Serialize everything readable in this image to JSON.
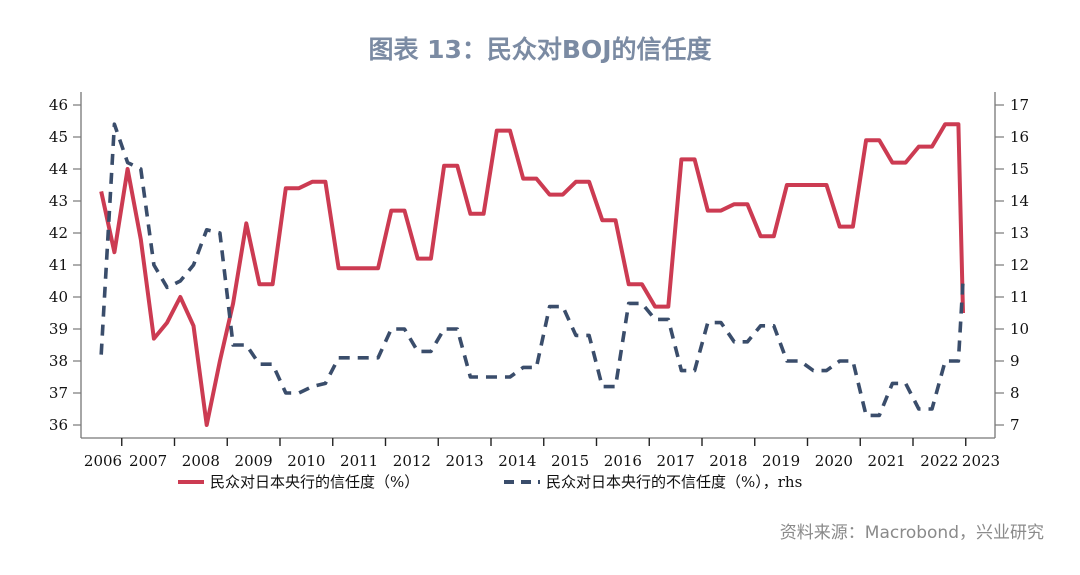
{
  "title": "图表 13：民众对BOJ的信任度",
  "source": "资料来源：Macrobond，兴业研究",
  "colors": {
    "trust": "#cc3b52",
    "distrust": "#3a4d6b",
    "title": "#7b8ba3",
    "axis": "#777777"
  },
  "chart_data": {
    "type": "line",
    "title": "图表 13：民众对BOJ的信任度",
    "xlabel": "",
    "ylabel_left": "",
    "ylabel_right": "",
    "x_ticks": [
      "2006",
      "2007",
      "2008",
      "2009",
      "2010",
      "2011",
      "2012",
      "2013",
      "2014",
      "2015",
      "2016",
      "2017",
      "2018",
      "2019",
      "2020",
      "2021",
      "2022",
      "2023"
    ],
    "y_left_ticks": [
      "46",
      "45",
      "44",
      "43",
      "42",
      "41",
      "40",
      "39",
      "38",
      "37",
      "36"
    ],
    "y_right_ticks": [
      "17",
      "16",
      "15",
      "14",
      "13",
      "12",
      "11",
      "10",
      "9",
      "8",
      "7"
    ],
    "ylim_left": [
      36,
      46
    ],
    "ylim_right": [
      7,
      17
    ],
    "x_range": [
      2006.0,
      2023.0
    ],
    "x_start": 2006.25,
    "x_step": 0.25,
    "legend_position": "bottom",
    "grid": false,
    "series": [
      {
        "name": "民众对日本央行的信任度（%）",
        "axis": "left",
        "style": "solid",
        "values": [
          43.3,
          41.4,
          44.0,
          41.8,
          38.7,
          39.2,
          40.0,
          39.1,
          36.0,
          38.0,
          39.8,
          42.3,
          40.4,
          40.4,
          43.4,
          43.4,
          43.6,
          43.6,
          40.9,
          40.9,
          40.9,
          40.9,
          42.7,
          42.7,
          41.2,
          41.2,
          44.1,
          44.1,
          42.6,
          42.6,
          45.2,
          45.2,
          43.7,
          43.7,
          43.2,
          43.2,
          43.6,
          43.6,
          42.4,
          42.4,
          40.4,
          40.4,
          39.7,
          39.7,
          44.3,
          44.3,
          42.7,
          42.7,
          42.9,
          42.9,
          41.9,
          41.9,
          43.5,
          43.5,
          43.5,
          43.5,
          42.2,
          42.2,
          44.9,
          44.9,
          44.2,
          44.2,
          44.7,
          44.7,
          45.4,
          45.4,
          39.5
        ]
      },
      {
        "name": "民众对日本央行的不信任度（%），rhs",
        "axis": "right",
        "style": "dashed",
        "values": [
          9.2,
          16.4,
          15.2,
          15.0,
          12.0,
          11.3,
          11.5,
          12.0,
          13.1,
          13.0,
          9.5,
          9.5,
          8.9,
          8.9,
          8.0,
          8.0,
          8.2,
          8.3,
          9.1,
          9.1,
          9.1,
          9.1,
          10.0,
          10.0,
          9.3,
          9.3,
          10.0,
          10.0,
          8.5,
          8.5,
          8.5,
          8.5,
          8.8,
          8.8,
          10.7,
          10.7,
          9.8,
          9.8,
          8.2,
          8.2,
          10.8,
          10.8,
          10.3,
          10.3,
          8.7,
          8.7,
          10.2,
          10.2,
          9.6,
          9.6,
          10.1,
          10.1,
          9.0,
          9.0,
          8.7,
          8.7,
          9.0,
          9.0,
          7.3,
          7.3,
          8.3,
          8.3,
          7.5,
          7.5,
          9.0,
          9.0,
          11.5
        ]
      }
    ]
  }
}
